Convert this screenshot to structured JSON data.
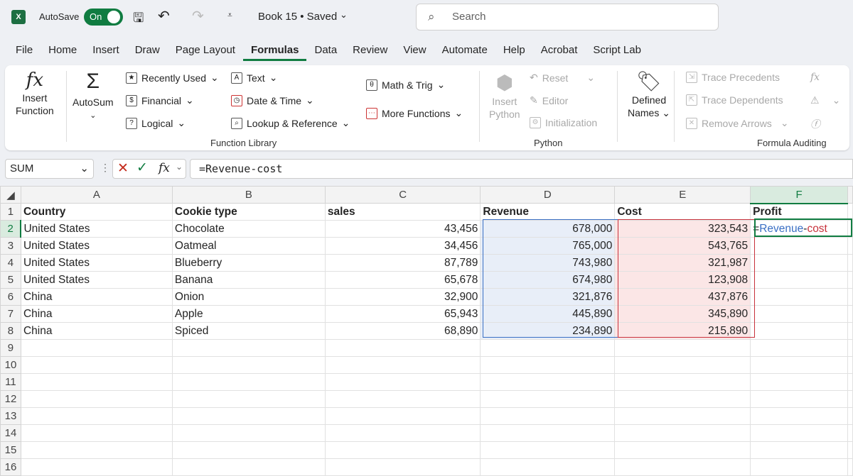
{
  "titlebar": {
    "app_icon": "excel-icon",
    "autosave_label": "AutoSave",
    "autosave_state": "On",
    "doc_title": "Book 15 • Saved",
    "search_placeholder": "Search"
  },
  "tabs": [
    "File",
    "Home",
    "Insert",
    "Draw",
    "Page Layout",
    "Formulas",
    "Data",
    "Review",
    "View",
    "Automate",
    "Help",
    "Acrobat",
    "Script Lab"
  ],
  "active_tab": "Formulas",
  "ribbon": {
    "insert_function": [
      "Insert",
      "Function"
    ],
    "autosum": "AutoSum",
    "recently_used": "Recently Used",
    "financial": "Financial",
    "logical": "Logical",
    "text": "Text",
    "date_time": "Date & Time",
    "lookup": "Lookup & Reference",
    "math_trig": "Math & Trig",
    "more_functions": "More Functions",
    "function_library": "Function Library",
    "insert_python": [
      "Insert",
      "Python"
    ],
    "reset": "Reset",
    "editor": "Editor",
    "initialization": "Initialization",
    "python": "Python",
    "defined_names": [
      "Defined",
      "Names"
    ],
    "trace_precedents": "Trace Precedents",
    "trace_dependents": "Trace Dependents",
    "remove_arrows": "Remove Arrows",
    "formula_auditing": "Formula Auditing"
  },
  "formula_bar": {
    "name_box": "SUM",
    "formula": "=Revenue-cost"
  },
  "columns": [
    "A",
    "B",
    "C",
    "D",
    "E",
    "F"
  ],
  "header_row": [
    "Country",
    "Cookie type",
    "sales",
    "Revenue",
    "Cost",
    "Profit"
  ],
  "rows": [
    [
      "United States",
      "Chocolate",
      "43,456",
      "678,000",
      "323,543"
    ],
    [
      "United States",
      "Oatmeal",
      "34,456",
      "765,000",
      "543,765"
    ],
    [
      "United States",
      "Blueberry",
      "87,789",
      "743,980",
      "321,987"
    ],
    [
      "United States",
      "Banana",
      "65,678",
      "674,980",
      "123,908"
    ],
    [
      "China",
      "Onion",
      "32,900",
      "321,876",
      "437,876"
    ],
    [
      "China",
      "Apple",
      "65,943",
      "445,890",
      "345,890"
    ],
    [
      "China",
      "Spiced",
      "68,890",
      "234,890",
      "215,890"
    ]
  ],
  "active_cell": {
    "ref": "F2",
    "eq": "=",
    "rev": "Revenue",
    "minus": "-",
    "cost": "cost"
  },
  "colors": {
    "accent": "#107c41",
    "revenue_ref": "#3a6fc4",
    "cost_ref": "#c8323c"
  }
}
